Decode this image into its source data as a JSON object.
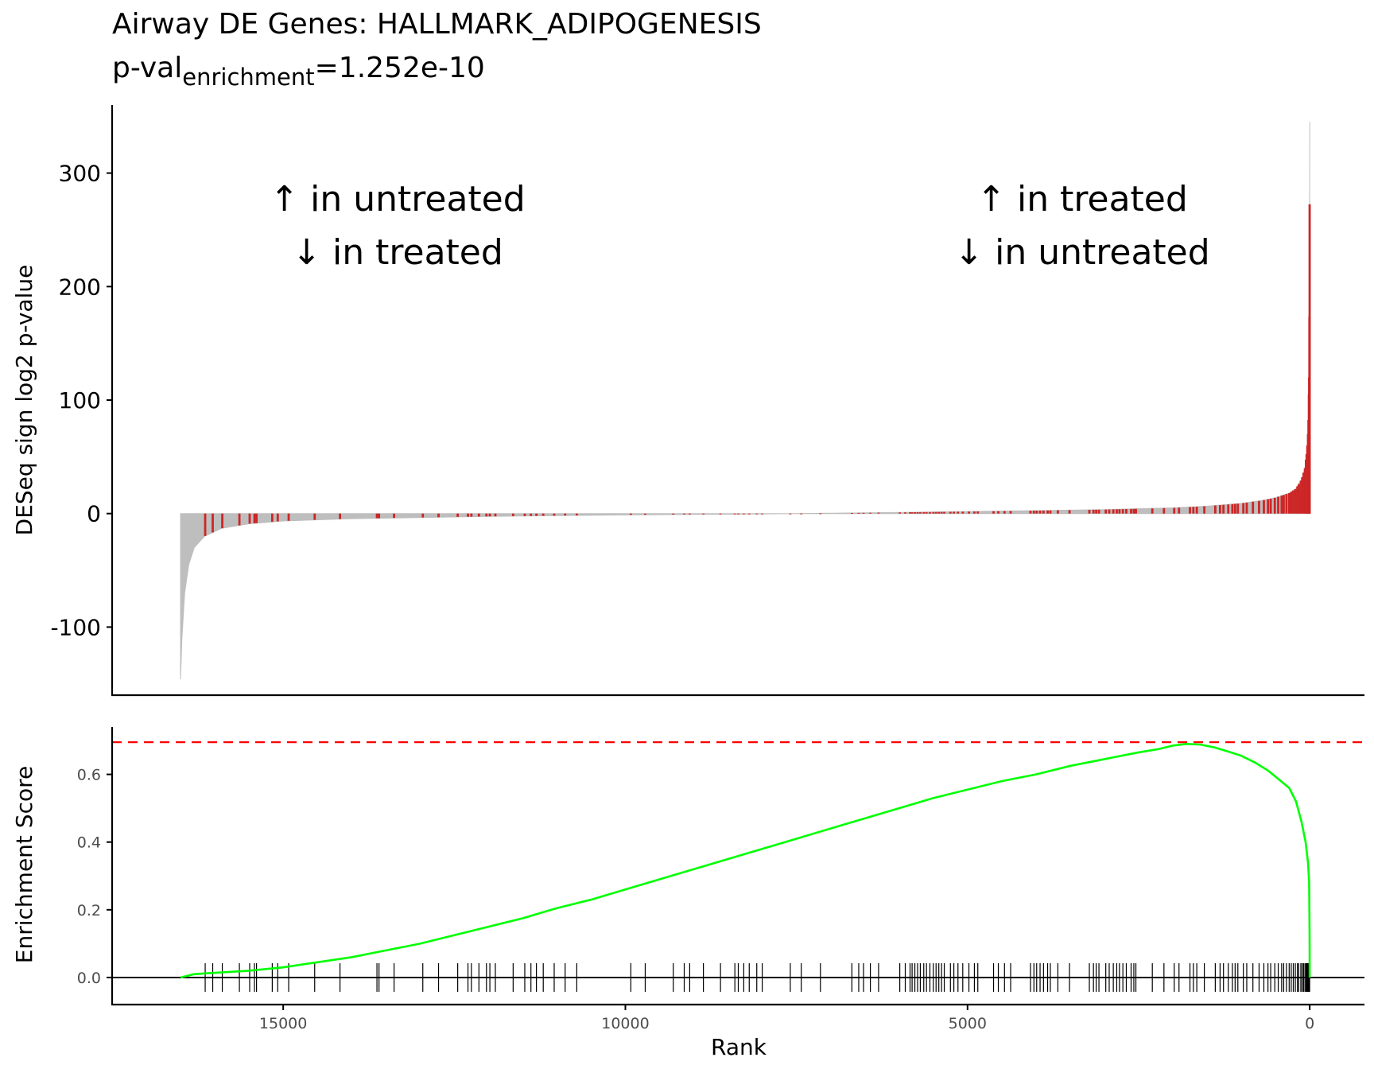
{
  "chart_data": [
    {
      "type": "bar",
      "title_line1": "Airway DE Genes: HALLMARK_ADIPOGENESIS",
      "title_line2_prefix": "p-val",
      "title_line2_subscript": "enrichment",
      "title_line2_suffix": "=1.252e-10",
      "ylabel": "DESeq sign log2 p-value",
      "ylim": [
        -160,
        360
      ],
      "yticks": [
        -100,
        0,
        100,
        200,
        300
      ],
      "ytick_labels": [
        "-100",
        "0",
        "100",
        "200",
        "300"
      ],
      "x_reversed": true,
      "xlim": [
        17500,
        -800
      ],
      "n_genes": 16500,
      "annotations": {
        "left_line1": "↑ in untreated",
        "left_line2": "↓ in treated",
        "right_line1": "↑ in treated",
        "right_line2": "↓ in untreated"
      },
      "curve_points": [
        [
          16500,
          -146
        ],
        [
          16480,
          -110
        ],
        [
          16440,
          -70
        ],
        [
          16380,
          -45
        ],
        [
          16300,
          -30
        ],
        [
          16150,
          -20
        ],
        [
          15900,
          -13
        ],
        [
          15500,
          -9
        ],
        [
          15000,
          -6.5
        ],
        [
          14000,
          -4.5
        ],
        [
          12000,
          -2.5
        ],
        [
          10000,
          -1.2
        ],
        [
          8000,
          -0.3
        ],
        [
          7000,
          0.3
        ],
        [
          6000,
          1
        ],
        [
          5000,
          1.8
        ],
        [
          4000,
          2.6
        ],
        [
          3000,
          3.5
        ],
        [
          2000,
          5
        ],
        [
          1500,
          6.5
        ],
        [
          1000,
          9
        ],
        [
          700,
          11.5
        ],
        [
          500,
          14
        ],
        [
          300,
          18
        ],
        [
          200,
          22
        ],
        [
          120,
          30
        ],
        [
          70,
          40
        ],
        [
          40,
          55
        ],
        [
          20,
          75
        ],
        [
          8,
          120
        ],
        [
          2,
          200
        ],
        [
          0,
          345
        ]
      ],
      "gene_set_ranks": [
        16140,
        16030,
        15890,
        15640,
        15490,
        15420,
        15390,
        15160,
        15080,
        14920,
        14540,
        14170,
        13630,
        13600,
        13380,
        12960,
        12730,
        12450,
        12300,
        12250,
        12140,
        12030,
        11980,
        11900,
        11640,
        11470,
        11380,
        11300,
        11200,
        11040,
        10880,
        10710,
        9920,
        9710,
        9300,
        9140,
        9060,
        8860,
        8610,
        8400,
        8350,
        8270,
        8190,
        8080,
        8000,
        7590,
        7430,
        7150,
        6690,
        6590,
        6520,
        6420,
        6300,
        5990,
        5910,
        5840,
        5810,
        5770,
        5730,
        5690,
        5640,
        5600,
        5550,
        5500,
        5460,
        5420,
        5380,
        5340,
        5250,
        5200,
        5140,
        5070,
        4980,
        4900,
        4850,
        4620,
        4550,
        4460,
        4370,
        4080,
        4030,
        3990,
        3940,
        3890,
        3830,
        3790,
        3680,
        3510,
        3220,
        3160,
        3120,
        3080,
        2980,
        2930,
        2870,
        2820,
        2780,
        2730,
        2680,
        2610,
        2570,
        2540,
        2300,
        2130,
        1980,
        1910,
        1750,
        1700,
        1650,
        1540,
        1380,
        1310,
        1260,
        1190,
        1130,
        1090,
        1050,
        970,
        920,
        830,
        740,
        670,
        610,
        570,
        510,
        460,
        410,
        380,
        340,
        300,
        270,
        240,
        210,
        180,
        160,
        130,
        110,
        90,
        70,
        55,
        45,
        35,
        25,
        18,
        12,
        8,
        4,
        1
      ],
      "colors": {
        "background_bar": "#bebebe",
        "gene_set_bar": "#cd2626"
      }
    },
    {
      "type": "line",
      "xlabel": "Rank",
      "ylabel": "Enrichment Score",
      "ylim": [
        -0.08,
        0.74
      ],
      "yticks": [
        0.0,
        0.2,
        0.4,
        0.6
      ],
      "ytick_labels": [
        "0.0",
        "0.2",
        "0.4",
        "0.6"
      ],
      "x_reversed": true,
      "xlim": [
        17500,
        -800
      ],
      "xticks": [
        15000,
        10000,
        5000,
        0
      ],
      "xtick_labels": [
        "15000",
        "10000",
        "5000",
        "0"
      ],
      "max_es_line": 0.695,
      "series": [
        {
          "points": [
            [
              16500,
              0.0
            ],
            [
              16300,
              0.01
            ],
            [
              15900,
              0.015
            ],
            [
              15500,
              0.02
            ],
            [
              15000,
              0.03
            ],
            [
              14500,
              0.045
            ],
            [
              14000,
              0.06
            ],
            [
              13500,
              0.08
            ],
            [
              13000,
              0.1
            ],
            [
              12500,
              0.125
            ],
            [
              12000,
              0.15
            ],
            [
              11500,
              0.175
            ],
            [
              11000,
              0.205
            ],
            [
              10500,
              0.23
            ],
            [
              10000,
              0.26
            ],
            [
              9500,
              0.29
            ],
            [
              9000,
              0.32
            ],
            [
              8500,
              0.35
            ],
            [
              8000,
              0.38
            ],
            [
              7500,
              0.41
            ],
            [
              7000,
              0.44
            ],
            [
              6500,
              0.47
            ],
            [
              6000,
              0.5
            ],
            [
              5500,
              0.53
            ],
            [
              5000,
              0.555
            ],
            [
              4500,
              0.58
            ],
            [
              4000,
              0.6
            ],
            [
              3500,
              0.625
            ],
            [
              3000,
              0.645
            ],
            [
              2500,
              0.665
            ],
            [
              2200,
              0.675
            ],
            [
              2000,
              0.685
            ],
            [
              1800,
              0.69
            ],
            [
              1600,
              0.688
            ],
            [
              1400,
              0.68
            ],
            [
              1200,
              0.668
            ],
            [
              1000,
              0.655
            ],
            [
              800,
              0.635
            ],
            [
              600,
              0.61
            ],
            [
              450,
              0.585
            ],
            [
              300,
              0.56
            ],
            [
              200,
              0.52
            ],
            [
              120,
              0.46
            ],
            [
              60,
              0.4
            ],
            [
              25,
              0.34
            ],
            [
              8,
              0.28
            ],
            [
              2,
              0.13
            ],
            [
              0,
              0.0
            ]
          ]
        }
      ],
      "colors": {
        "es_line": "#00ff00",
        "max_line": "#ff0000",
        "rug": "#000000"
      }
    }
  ]
}
